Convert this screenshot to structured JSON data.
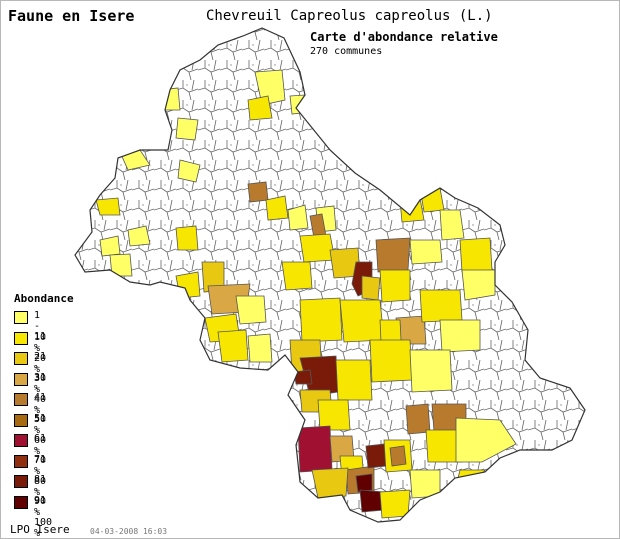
{
  "header": {
    "region_title": "Faune en Isere",
    "species": "Chevreuil   Capreolus capreolus (L.)",
    "map_kind": "Carte d'abondance relative",
    "communes_count": "270 communes"
  },
  "legend": {
    "title": "Abondance",
    "items": [
      {
        "label": "1 - 10 %",
        "color": "#ffff66"
      },
      {
        "label": "11 - 20 %",
        "color": "#f7e600"
      },
      {
        "label": "21 - 30 %",
        "color": "#e8c810"
      },
      {
        "label": "31 - 40 %",
        "color": "#d9a845"
      },
      {
        "label": "41 - 50 %",
        "color": "#b87a2c"
      },
      {
        "label": "51 - 60 %",
        "color": "#a86a10"
      },
      {
        "label": "61 - 70 %",
        "color": "#a01030"
      },
      {
        "label": "71 - 80 %",
        "color": "#903010"
      },
      {
        "label": "81 - 90 %",
        "color": "#7a1a08"
      },
      {
        "label": "91 - 100 %",
        "color": "#600000"
      }
    ]
  },
  "footer": {
    "organization": "LPO Isere",
    "timestamp": "04-03-2008 16:03"
  },
  "map": {
    "outline_color": "#555555",
    "empty_fill": "#ffffff"
  }
}
